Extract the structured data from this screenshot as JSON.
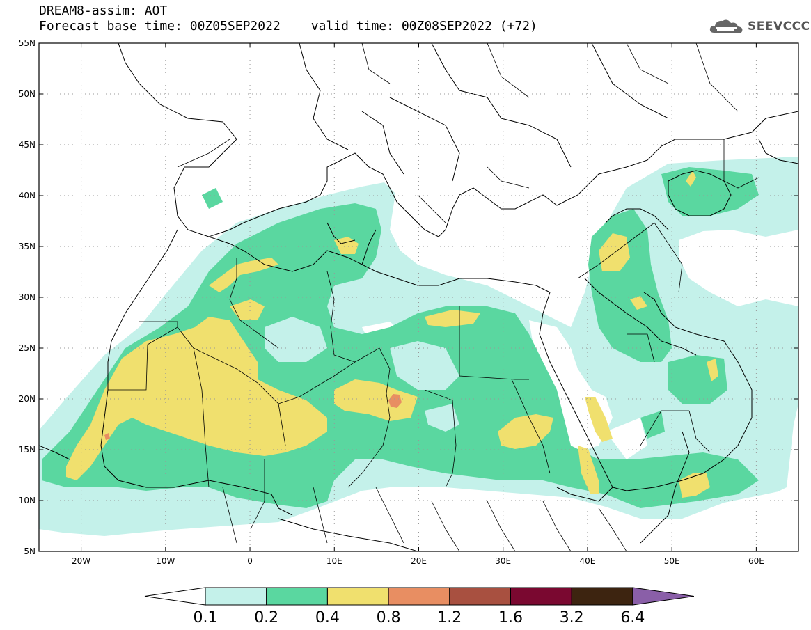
{
  "title": {
    "line1": "DREAM8-assim: AOT",
    "base_time": "Forecast base time: 00Z05SEP2022",
    "valid_time": "valid time: 00Z08SEP2022 (+72)"
  },
  "logo": {
    "text": "SEEVCCC",
    "icon": "cloud-logo-icon"
  },
  "map": {
    "projection": "lat-lon",
    "lon_range": [
      -25,
      65
    ],
    "lat_range": [
      5,
      55
    ],
    "lon_ticks": [
      -20,
      -10,
      0,
      10,
      20,
      30,
      40,
      50,
      60
    ],
    "lon_tick_labels": [
      "20W",
      "10W",
      "0",
      "10E",
      "20E",
      "30E",
      "40E",
      "50E",
      "60E"
    ],
    "lat_ticks": [
      55,
      50,
      45,
      40,
      35,
      30,
      25,
      20,
      15,
      10,
      5
    ],
    "lat_tick_labels": [
      "55N",
      "50N",
      "45N",
      "40N",
      "35N",
      "30N",
      "25N",
      "20N",
      "15N",
      "10N",
      "5N"
    ],
    "grid": "dotted"
  },
  "colorbar": {
    "levels": [
      "0.1",
      "0.2",
      "0.4",
      "0.8",
      "1.2",
      "1.6",
      "3.2",
      "6.4"
    ],
    "colors": [
      "#c4f1ea",
      "#5ad7a0",
      "#f0e06e",
      "#e88e62",
      "#a85040",
      "#7a0830",
      "#3d2410",
      "#8a5fa8"
    ],
    "under_color": "#ffffff",
    "extend": "both"
  },
  "fields": {
    "light": "#c4f1ea",
    "green": "#5ad7a0",
    "yellow": "#f0e06e",
    "orange": "#e88e62"
  }
}
